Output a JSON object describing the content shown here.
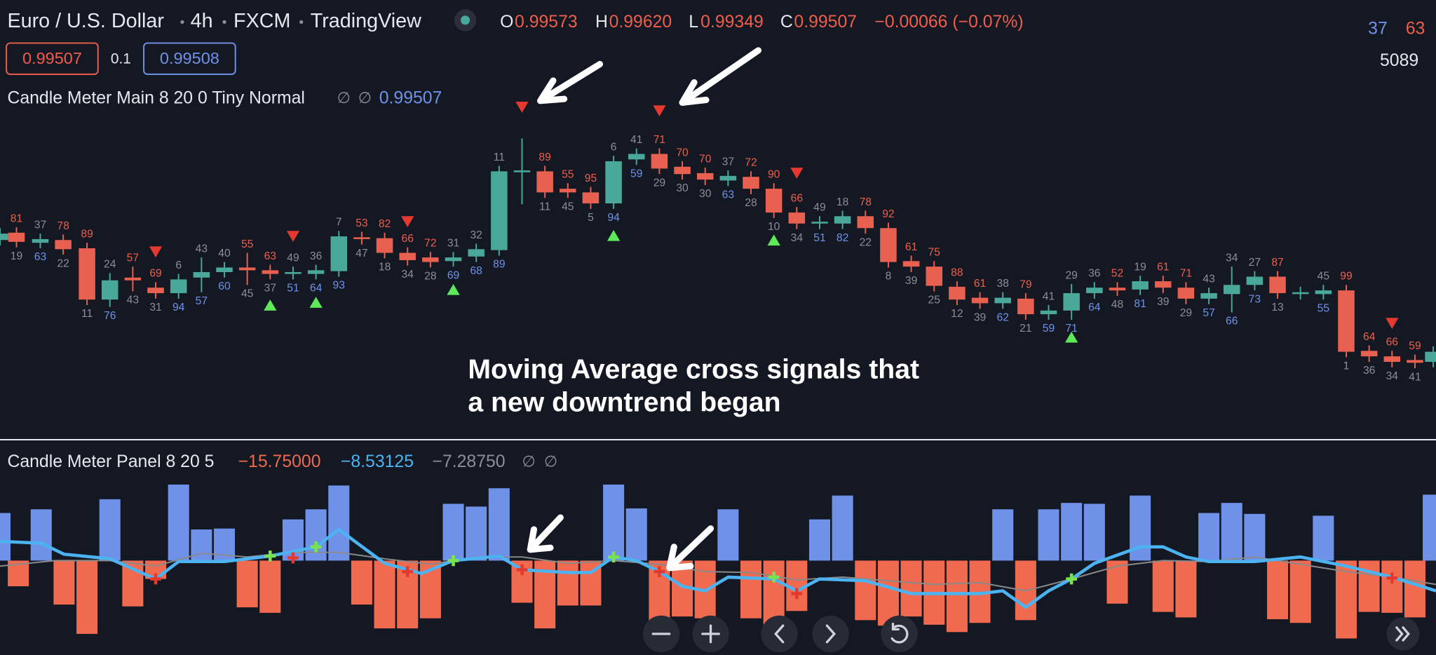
{
  "header": {
    "symbol": "Euro / U.S. Dollar",
    "interval": "4h",
    "source": "FXCM",
    "platform": "TradingView",
    "ohlc": [
      {
        "label": "O",
        "value": "0.99573"
      },
      {
        "label": "H",
        "value": "0.99620"
      },
      {
        "label": "L",
        "value": "0.99349"
      },
      {
        "label": "C",
        "value": "0.99507"
      }
    ],
    "change": "−0.00066 (−0.07%)"
  },
  "status": {
    "counts": [
      "37",
      "63"
    ],
    "total": "5089"
  },
  "order": {
    "sell": "0.99507",
    "spread": "0.1",
    "buy": "0.99508"
  },
  "main_indicator": {
    "name": "Candle Meter Main 8 20 0 Tiny Normal",
    "icons": [
      "∅",
      "∅"
    ],
    "value": "0.99507"
  },
  "annotation": [
    "Moving Average cross signals that",
    "a new downtrend began"
  ],
  "candles": [
    {
      "top": 81,
      "bottom": 19
    },
    {
      "top": 37,
      "bottom": 63
    },
    {
      "top": 78,
      "bottom": 22
    },
    {
      "top": 89,
      "bottom": 11
    },
    {
      "top": 24,
      "bottom": 76
    },
    {
      "top": 57,
      "bottom": 43
    },
    {
      "top": 69,
      "bottom": 31
    },
    {
      "top": 6,
      "bottom": 94
    },
    {
      "top": 43,
      "bottom": 57
    },
    {
      "top": 40,
      "bottom": 60
    },
    {
      "top": 55,
      "bottom": 45
    },
    {
      "top": 63,
      "bottom": 37
    },
    {
      "top": 49,
      "bottom": 51
    },
    {
      "top": 36,
      "bottom": 64
    },
    {
      "top": 7,
      "bottom": 93
    },
    {
      "top": 53,
      "bottom": 47
    },
    {
      "top": 82,
      "bottom": 18
    },
    {
      "top": 66,
      "bottom": 34
    },
    {
      "top": 72,
      "bottom": 28
    },
    {
      "top": 31,
      "bottom": 69
    },
    {
      "top": 32,
      "bottom": 68
    },
    {
      "top": 11,
      "bottom": 89
    },
    {
      "top": 89,
      "bottom": 11
    },
    {
      "top": 55,
      "bottom": 45
    },
    {
      "top": 95,
      "bottom": 5
    },
    {
      "top": 6,
      "bottom": 94
    },
    {
      "top": 41,
      "bottom": 59
    },
    {
      "top": 71,
      "bottom": 29
    },
    {
      "top": 70,
      "bottom": 30
    },
    {
      "top": 70,
      "bottom": 30
    },
    {
      "top": 37,
      "bottom": 63
    },
    {
      "top": 72,
      "bottom": 28
    },
    {
      "top": 90,
      "bottom": 10
    },
    {
      "top": 66,
      "bottom": 34
    },
    {
      "top": 49,
      "bottom": 51
    },
    {
      "top": 18,
      "bottom": 82
    },
    {
      "top": 78,
      "bottom": 22
    },
    {
      "top": 92,
      "bottom": 8
    },
    {
      "top": 61,
      "bottom": 39
    },
    {
      "top": 75,
      "bottom": 25
    },
    {
      "top": 88,
      "bottom": 12
    },
    {
      "top": 61,
      "bottom": 39
    },
    {
      "top": 38,
      "bottom": 62
    },
    {
      "top": 79,
      "bottom": 21
    },
    {
      "top": 41,
      "bottom": 59
    },
    {
      "top": 29,
      "bottom": 71
    },
    {
      "top": 36,
      "bottom": 64
    },
    {
      "top": 52,
      "bottom": 48
    },
    {
      "top": 19,
      "bottom": 81
    },
    {
      "top": 61,
      "bottom": 39
    },
    {
      "top": 71,
      "bottom": 29
    },
    {
      "top": 43,
      "bottom": 57
    },
    {
      "top": 34,
      "bottom": 66
    },
    {
      "top": 27,
      "bottom": 73
    },
    {
      "top": 87,
      "bottom": 13
    },
    {
      "top": 45,
      "bottom": 55
    },
    {
      "top": 99,
      "bottom": 1
    },
    {
      "top": 64,
      "bottom": 36
    },
    {
      "top": 66,
      "bottom": 34
    },
    {
      "top": 59,
      "bottom": 41
    }
  ],
  "panel_indicator": {
    "name": "Candle Meter Panel 8 20 5",
    "values": [
      "−15.75000",
      "−8.53125",
      "−7.28750"
    ],
    "icons": [
      "∅",
      "∅"
    ]
  }
}
